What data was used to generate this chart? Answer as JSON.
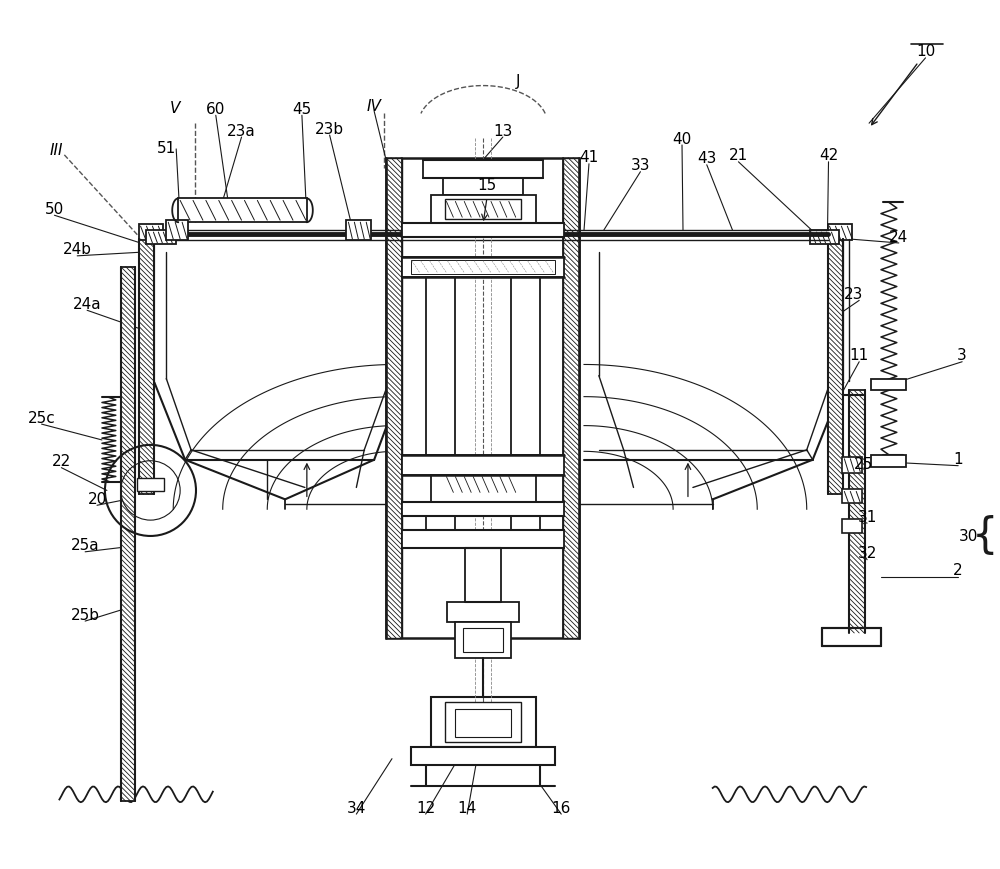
{
  "bg_color": "#ffffff",
  "line_color": "#1a1a1a",
  "fig_width": 10.0,
  "fig_height": 8.69,
  "label_positions": {
    "10": [
      935,
      48,
      false
    ],
    "III": [
      57,
      148,
      true
    ],
    "IV": [
      378,
      103,
      true
    ],
    "V": [
      177,
      105,
      true
    ],
    "J": [
      523,
      78,
      false
    ],
    "1": [
      968,
      460,
      false
    ],
    "2": [
      968,
      572,
      false
    ],
    "3": [
      972,
      355,
      false
    ],
    "11": [
      868,
      355,
      false
    ],
    "12": [
      430,
      812,
      false
    ],
    "13": [
      508,
      128,
      false
    ],
    "14": [
      472,
      812,
      false
    ],
    "15": [
      492,
      183,
      false
    ],
    "16": [
      567,
      812,
      false
    ],
    "20": [
      98,
      500,
      false
    ],
    "21": [
      746,
      153,
      false
    ],
    "22": [
      62,
      462,
      false
    ],
    "23": [
      862,
      293,
      false
    ],
    "23a": [
      244,
      128,
      false
    ],
    "23b": [
      333,
      126,
      false
    ],
    "24": [
      908,
      235,
      false
    ],
    "24a": [
      88,
      303,
      false
    ],
    "24b": [
      78,
      248,
      false
    ],
    "25": [
      872,
      465,
      false
    ],
    "25a": [
      86,
      547,
      false
    ],
    "25b": [
      86,
      617,
      false
    ],
    "25c": [
      42,
      418,
      false
    ],
    "30": [
      978,
      538,
      false
    ],
    "31": [
      876,
      518,
      false
    ],
    "32": [
      876,
      555,
      false
    ],
    "33": [
      647,
      163,
      false
    ],
    "34": [
      360,
      812,
      false
    ],
    "40": [
      689,
      136,
      false
    ],
    "41": [
      595,
      155,
      false
    ],
    "42": [
      837,
      153,
      false
    ],
    "43": [
      714,
      156,
      false
    ],
    "45": [
      305,
      106,
      false
    ],
    "50": [
      55,
      207,
      false
    ],
    "51": [
      168,
      146,
      false
    ],
    "60": [
      218,
      106,
      false
    ]
  }
}
